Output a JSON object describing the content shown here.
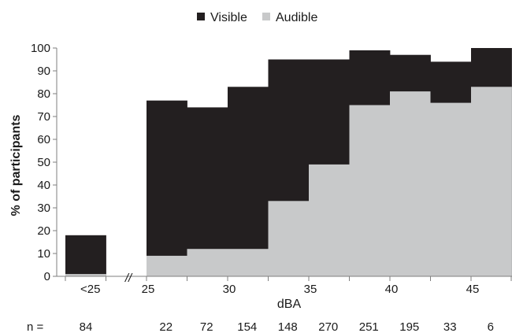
{
  "chart_data": {
    "type": "area",
    "stacking": "overlapping",
    "title": "",
    "xlabel": "dBA",
    "ylabel": "% of participants",
    "ylim": [
      0,
      100
    ],
    "yticks": [
      0,
      10,
      20,
      30,
      40,
      50,
      60,
      70,
      80,
      90,
      100
    ],
    "grid": false,
    "legend_position": "top-center",
    "legend": [
      {
        "name": "Visible",
        "color": "#231f20"
      },
      {
        "name": "Audible",
        "color": "#c8c9ca"
      }
    ],
    "x_tick_labels": [
      "<25",
      "25",
      "30",
      "35",
      "40",
      "45"
    ],
    "break_marker": "//",
    "bins": [
      {
        "label": "<25",
        "n": "84",
        "visible": 18,
        "audible": 1
      },
      {
        "label": "",
        "n": "",
        "visible": null,
        "audible": null
      },
      {
        "label": "25",
        "n": "22",
        "visible": 77,
        "audible": 9
      },
      {
        "label": "",
        "n": "72",
        "visible": 74,
        "audible": 12
      },
      {
        "label": "30",
        "n": "154",
        "visible": 83,
        "audible": 12
      },
      {
        "label": "",
        "n": "148",
        "visible": 95,
        "audible": 33
      },
      {
        "label": "35",
        "n": "270",
        "visible": 95,
        "audible": 49
      },
      {
        "label": "",
        "n": "251",
        "visible": 99,
        "audible": 75
      },
      {
        "label": "40",
        "n": "195",
        "visible": 97,
        "audible": 81
      },
      {
        "label": "",
        "n": "33",
        "visible": 94,
        "audible": 76
      },
      {
        "label": "45",
        "n": "6",
        "visible": 100,
        "audible": 83
      }
    ],
    "n_prefix": "n ="
  },
  "colors": {
    "axis": "#7f7f7f",
    "text": "#1a1a1a"
  }
}
